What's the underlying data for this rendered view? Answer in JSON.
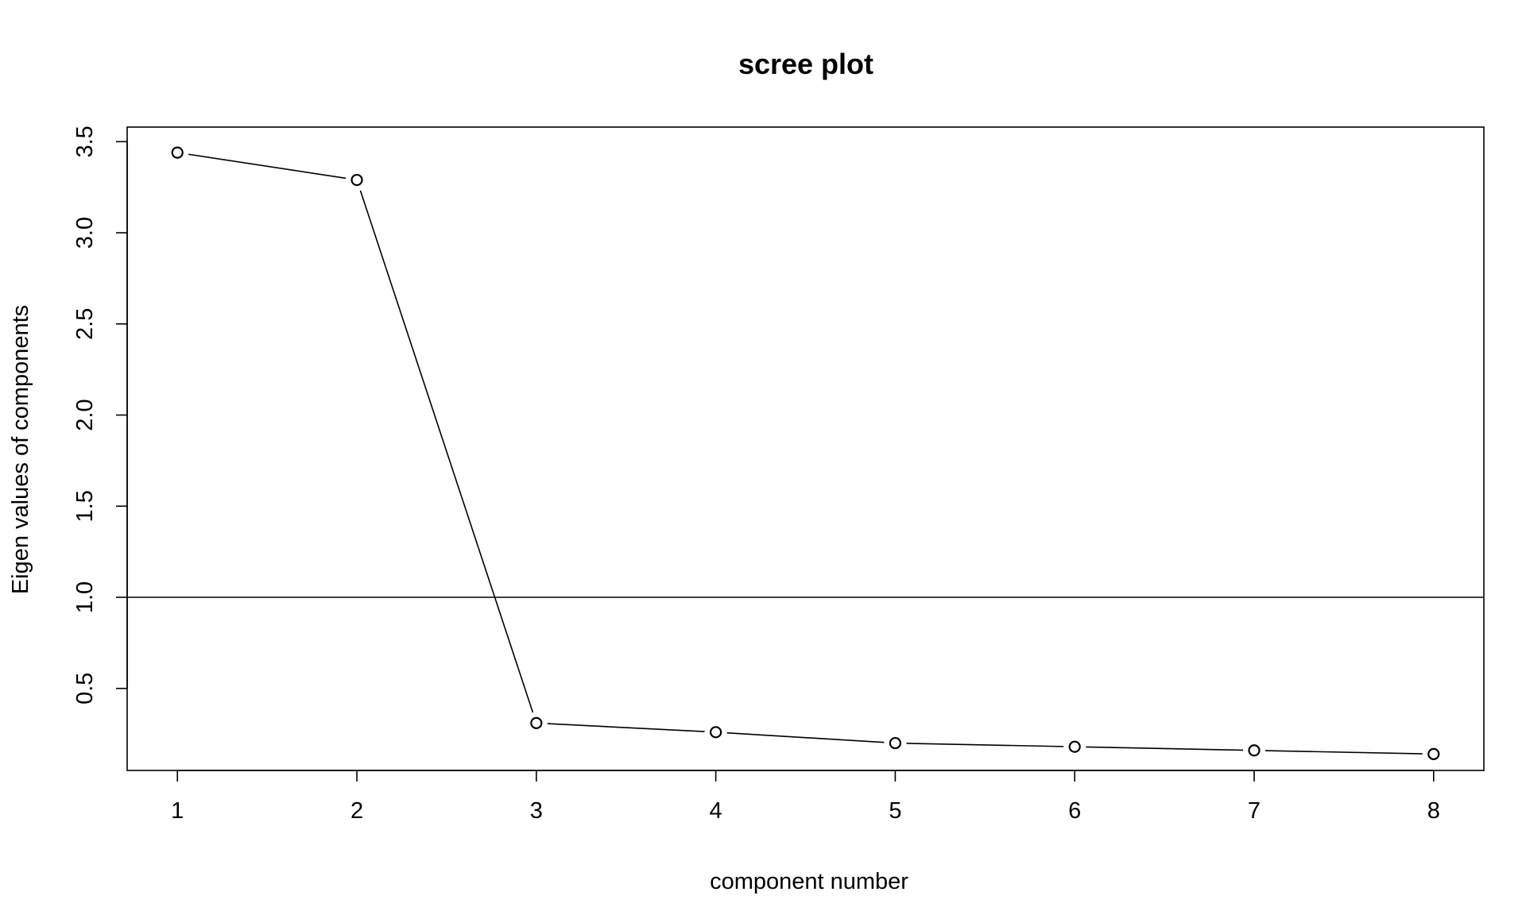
{
  "chart_data": {
    "type": "line",
    "plot_style": "points-and-lines",
    "title": "scree plot",
    "xlabel": "component number",
    "ylabel": "Eigen values of components",
    "x": [
      1,
      2,
      3,
      4,
      5,
      6,
      7,
      8
    ],
    "values": [
      3.44,
      3.29,
      0.31,
      0.26,
      0.2,
      0.18,
      0.16,
      0.14
    ],
    "xlim": [
      0.72,
      8.28
    ],
    "ylim": [
      0.05,
      3.58
    ],
    "x_ticks": [
      1,
      2,
      3,
      4,
      5,
      6,
      7,
      8
    ],
    "x_tick_labels": [
      "1",
      "2",
      "3",
      "4",
      "5",
      "6",
      "7",
      "8"
    ],
    "y_ticks": [
      0.5,
      1.0,
      1.5,
      2.0,
      2.5,
      3.0,
      3.5
    ],
    "y_tick_labels": [
      "0.5",
      "1.0",
      "1.5",
      "2.0",
      "2.5",
      "3.0",
      "3.5"
    ],
    "reference_line": {
      "y": 1.0,
      "orientation": "horizontal"
    },
    "grid": false,
    "legend": "none",
    "colors": {
      "line": "#000000",
      "marker_fill": "#ffffff",
      "marker_stroke": "#000000"
    }
  }
}
